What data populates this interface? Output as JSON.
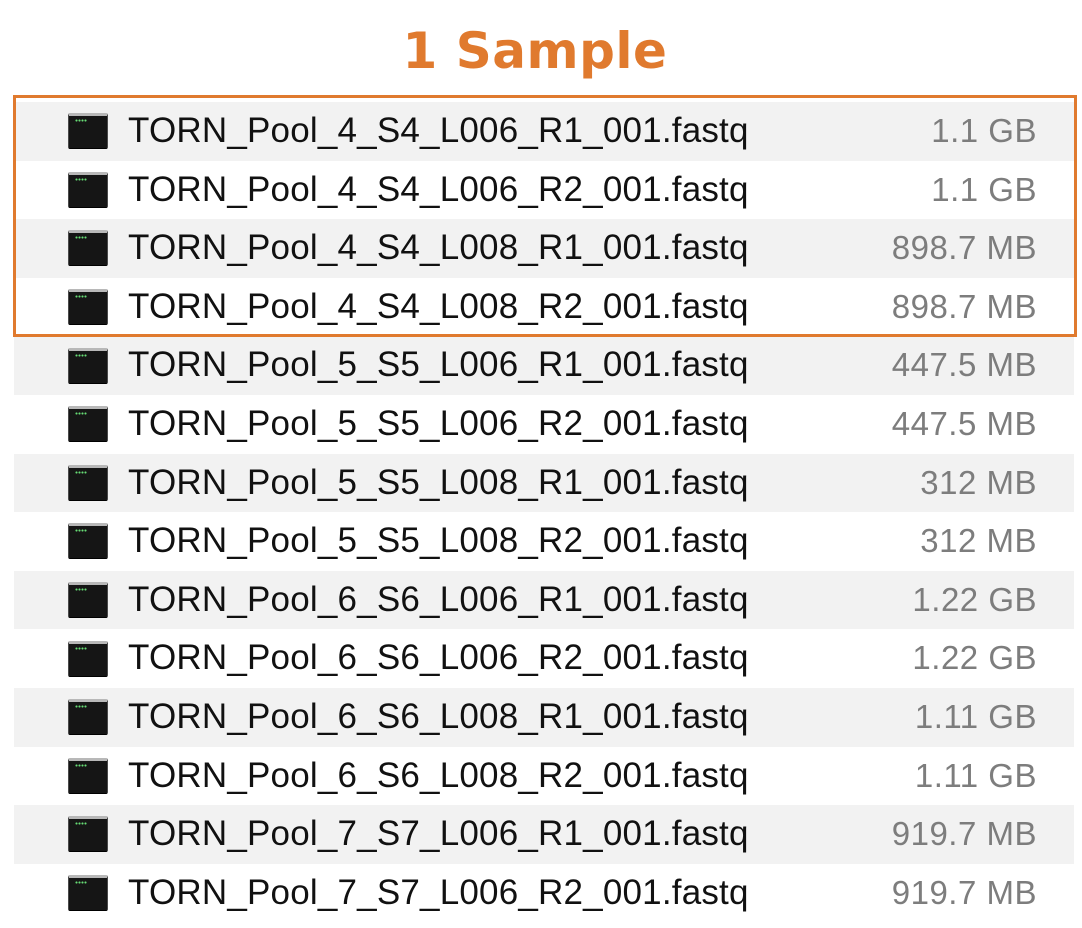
{
  "annotation": {
    "label": "1 Sample",
    "accent_color": "#e07a2e"
  },
  "files": [
    {
      "name": "TORN_Pool_4_S4_L006_R1_001.fastq",
      "size": "1.1 GB",
      "icon": "terminal-document-icon"
    },
    {
      "name": "TORN_Pool_4_S4_L006_R2_001.fastq",
      "size": "1.1 GB",
      "icon": "terminal-document-icon"
    },
    {
      "name": "TORN_Pool_4_S4_L008_R1_001.fastq",
      "size": "898.7 MB",
      "icon": "terminal-document-icon"
    },
    {
      "name": "TORN_Pool_4_S4_L008_R2_001.fastq",
      "size": "898.7 MB",
      "icon": "terminal-document-icon"
    },
    {
      "name": "TORN_Pool_5_S5_L006_R1_001.fastq",
      "size": "447.5 MB",
      "icon": "terminal-document-icon"
    },
    {
      "name": "TORN_Pool_5_S5_L006_R2_001.fastq",
      "size": "447.5 MB",
      "icon": "terminal-document-icon"
    },
    {
      "name": "TORN_Pool_5_S5_L008_R1_001.fastq",
      "size": "312 MB",
      "icon": "terminal-document-icon"
    },
    {
      "name": "TORN_Pool_5_S5_L008_R2_001.fastq",
      "size": "312 MB",
      "icon": "terminal-document-icon"
    },
    {
      "name": "TORN_Pool_6_S6_L006_R1_001.fastq",
      "size": "1.22 GB",
      "icon": "terminal-document-icon"
    },
    {
      "name": "TORN_Pool_6_S6_L006_R2_001.fastq",
      "size": "1.22 GB",
      "icon": "terminal-document-icon"
    },
    {
      "name": "TORN_Pool_6_S6_L008_R1_001.fastq",
      "size": "1.11 GB",
      "icon": "terminal-document-icon"
    },
    {
      "name": "TORN_Pool_6_S6_L008_R2_001.fastq",
      "size": "1.11 GB",
      "icon": "terminal-document-icon"
    },
    {
      "name": "TORN_Pool_7_S7_L006_R1_001.fastq",
      "size": "919.7 MB",
      "icon": "terminal-document-icon"
    },
    {
      "name": "TORN_Pool_7_S7_L006_R2_001.fastq",
      "size": "919.7 MB",
      "icon": "terminal-document-icon"
    }
  ],
  "colors": {
    "row_stripe": "#f2f2f2",
    "file_name_text": "#111111",
    "file_size_text": "#7d7d7d"
  }
}
